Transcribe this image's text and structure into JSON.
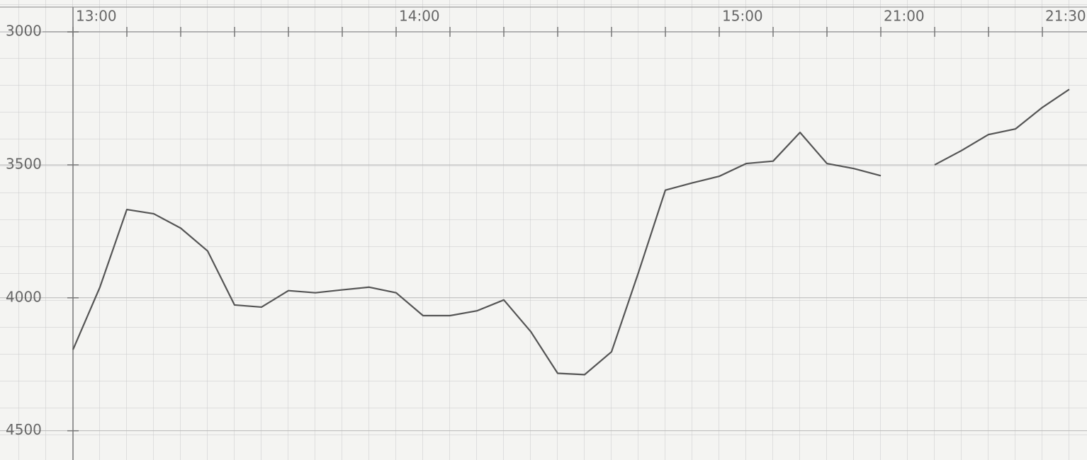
{
  "chart_data": {
    "type": "line",
    "categories": [
      "13:00",
      null,
      null,
      null,
      null,
      null,
      null,
      null,
      null,
      null,
      null,
      null,
      "14:00",
      null,
      null,
      null,
      null,
      null,
      null,
      null,
      null,
      null,
      null,
      null,
      "15:00",
      null,
      null,
      null,
      null,
      null,
      "21:00",
      null,
      null,
      null,
      null,
      null,
      "21:30",
      null
    ],
    "series": [
      {
        "color": "#555555",
        "values": [
          4195,
          3960,
          3668,
          3684,
          3738,
          3824,
          4027,
          4035,
          3973,
          3981,
          3970,
          3960,
          3981,
          4067,
          4067,
          4049,
          4008,
          4127,
          4284,
          4289,
          4203,
          3905,
          3595,
          3568,
          3543,
          3495,
          3486,
          3378,
          3495,
          3514,
          3541,
          null,
          3500,
          3446,
          3386,
          3365,
          3284,
          3216
        ]
      }
    ],
    "ylim": [
      4610,
      2880
    ],
    "yticks": [
      3000,
      3500,
      4000,
      4500
    ],
    "grid": true
  }
}
